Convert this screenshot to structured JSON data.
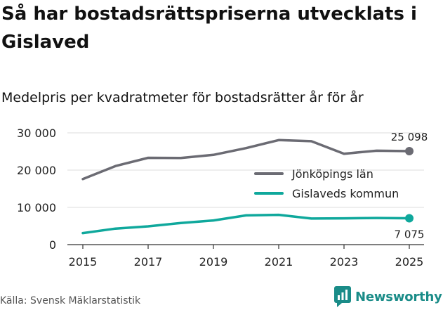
{
  "title": "Så har bostadsrättspriserna utvecklats i Gislaved",
  "subtitle": "Medelpris per kvadratmeter för bostadsrätter år för år",
  "source": "Källa: Svensk Mäklarstatistik",
  "brand": "Newsworthy",
  "colors": {
    "lan": "#6b6b73",
    "kommun": "#0fa89c",
    "axis": "#333333",
    "grid": "#dddddd",
    "brand": "#1a8c88"
  },
  "chart_data": {
    "type": "line",
    "title": "Så har bostadsrättspriserna utvecklats i Gislaved",
    "subtitle": "Medelpris per kvadratmeter för bostadsrätter år för år",
    "xlabel": "",
    "ylabel": "",
    "x": [
      2015,
      2016,
      2017,
      2018,
      2019,
      2020,
      2021,
      2022,
      2023,
      2024,
      2025
    ],
    "xticks": [
      2015,
      2017,
      2019,
      2021,
      2023,
      2025
    ],
    "ylim": [
      0,
      30000
    ],
    "yticks": [
      0,
      10000,
      20000,
      30000
    ],
    "ytick_labels": [
      "0",
      "10 000",
      "20 000",
      "30 000"
    ],
    "legend_position": "center-right",
    "series": [
      {
        "name": "Jönköpings län",
        "values": [
          17600,
          21100,
          23300,
          23250,
          24100,
          25900,
          28050,
          27750,
          24400,
          25200,
          25098
        ],
        "end_label": "25 098"
      },
      {
        "name": "Gislaveds kommun",
        "values": [
          3100,
          4300,
          4900,
          5800,
          6500,
          7850,
          8000,
          7000,
          7050,
          7150,
          7075
        ],
        "end_label": "7 075"
      }
    ]
  }
}
